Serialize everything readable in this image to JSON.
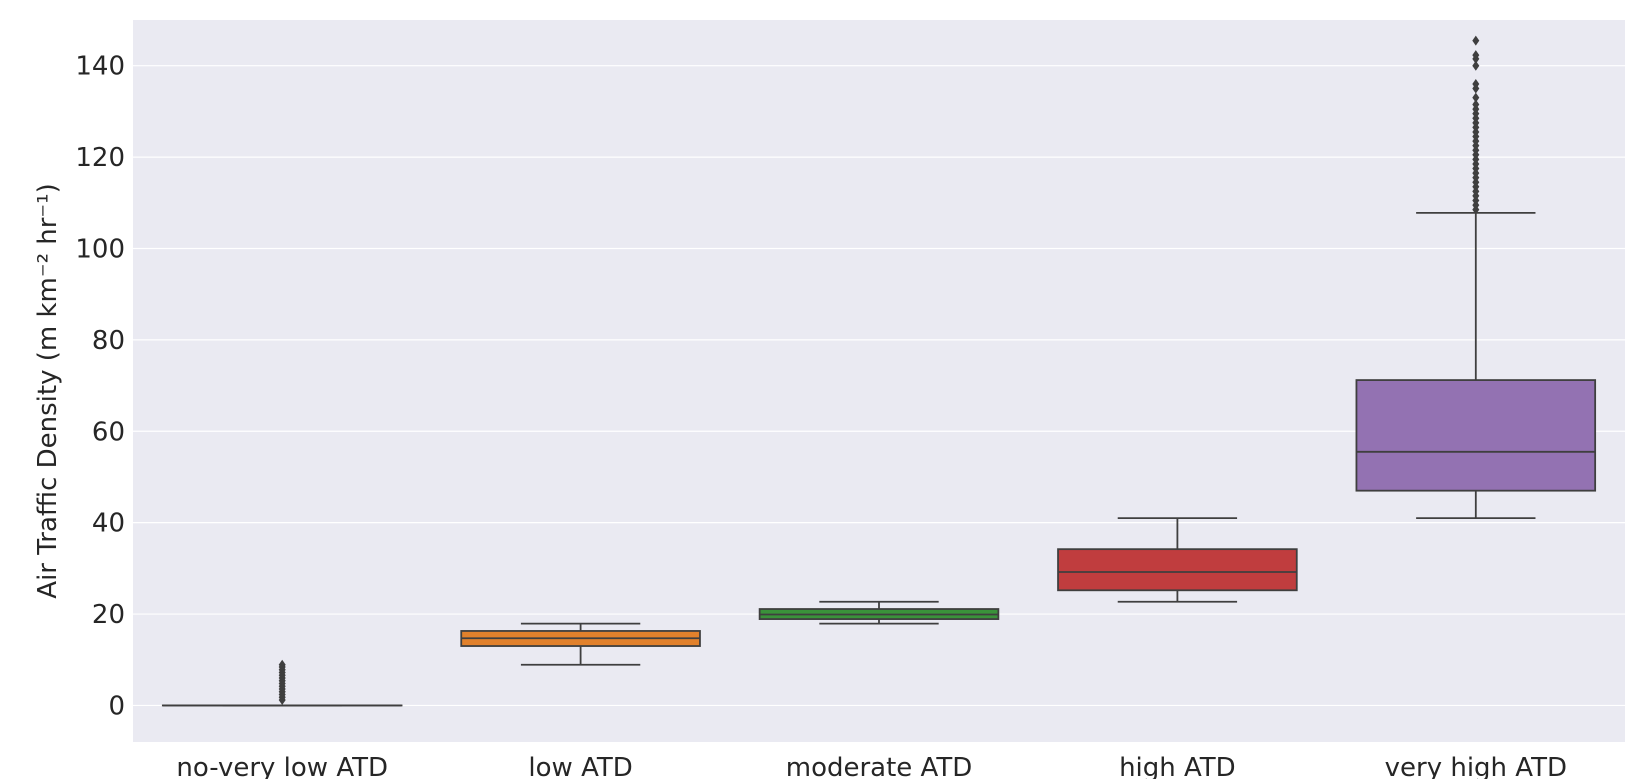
{
  "chart_data": {
    "type": "box",
    "ylabel": "Air Traffic Density (m km⁻² hr⁻¹)",
    "xlabel": "",
    "ylim": [
      -8,
      150
    ],
    "yticks": [
      0,
      20,
      40,
      60,
      80,
      100,
      120,
      140
    ],
    "grid": true,
    "categories": [
      "no-very low ATD",
      "low ATD",
      "moderate ATD",
      "high ATD",
      "very high ATD"
    ],
    "colors": [
      "#3a70b0",
      "#e1812c",
      "#3a923a",
      "#c03d3e",
      "#9372b2"
    ],
    "boxes": [
      {
        "whisker_low": 0,
        "q1": 0,
        "median": 0,
        "q3": 0,
        "whisker_high": 0,
        "outliers": [
          1.2,
          1.8,
          2.4,
          3.0,
          3.6,
          4.2,
          4.8,
          5.4,
          6.0,
          6.6,
          7.2,
          7.8,
          8.4,
          8.9
        ]
      },
      {
        "whisker_low": 8.9,
        "q1": 13.0,
        "median": 14.7,
        "q3": 16.3,
        "whisker_high": 17.9,
        "outliers": []
      },
      {
        "whisker_low": 17.9,
        "q1": 18.9,
        "median": 19.9,
        "q3": 21.1,
        "whisker_high": 22.7,
        "outliers": []
      },
      {
        "whisker_low": 22.7,
        "q1": 25.2,
        "median": 29.2,
        "q3": 34.2,
        "whisker_high": 41.0,
        "outliers": []
      },
      {
        "whisker_low": 41.0,
        "q1": 47.0,
        "median": 55.5,
        "q3": 71.2,
        "whisker_high": 107.8,
        "outliers": [
          108.5,
          109.5,
          110.5,
          111.5,
          112.5,
          113.5,
          114.5,
          115.5,
          116.5,
          117.5,
          118.5,
          119.5,
          120.5,
          121.5,
          122.5,
          123.5,
          124.5,
          125.5,
          126.5,
          127.5,
          128.5,
          129.5,
          130.5,
          131.5,
          133.0,
          135.0,
          136.0,
          140.0,
          141.5,
          142.3,
          145.5
        ]
      }
    ]
  }
}
